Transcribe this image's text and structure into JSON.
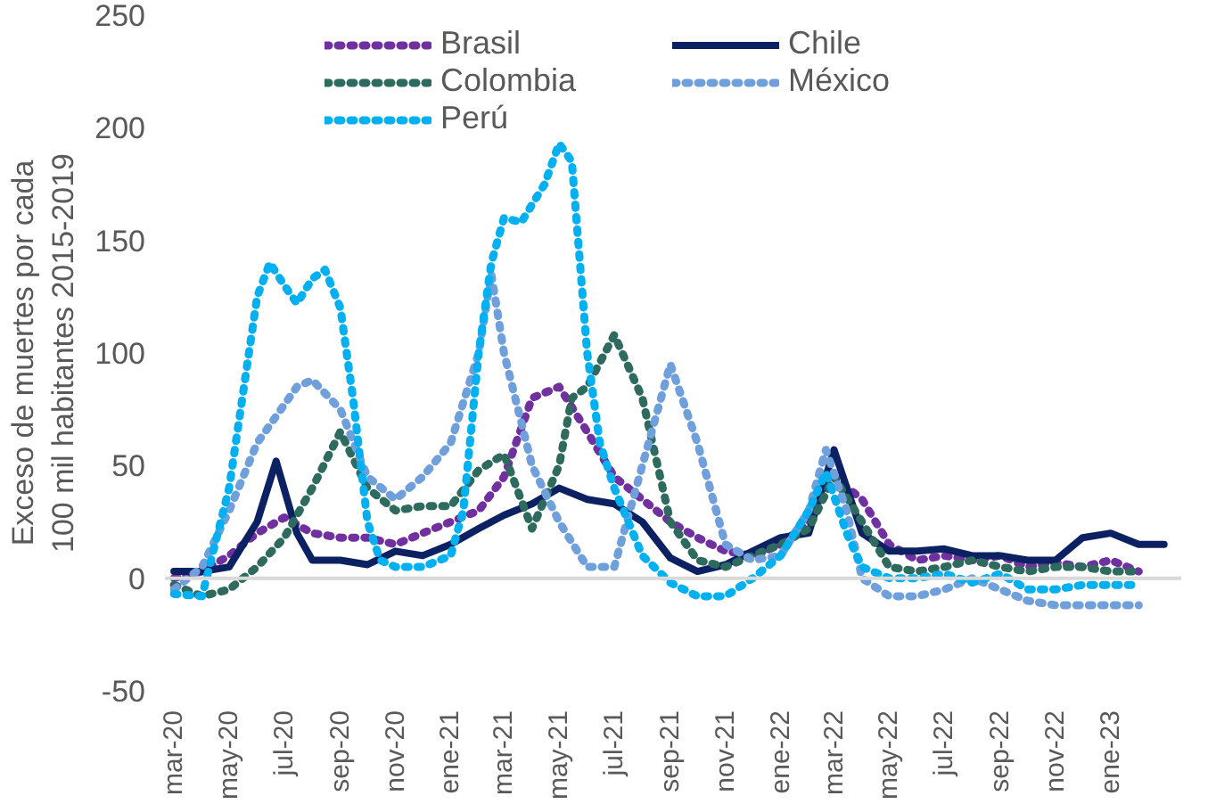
{
  "chart_data": {
    "type": "line",
    "ylabel": "Exceso de muertes por cada\n100 mil habitantes 2015-2019",
    "ylim": [
      -50,
      250
    ],
    "yticks": [
      -50,
      0,
      50,
      100,
      150,
      200,
      250
    ],
    "xlim": [
      "2020-02-20",
      "2023-03-20"
    ],
    "xticks": [
      {
        "value": "2020-03-01",
        "label": "mar-20"
      },
      {
        "value": "2020-05-01",
        "label": "may-20"
      },
      {
        "value": "2020-07-01",
        "label": "jul-20"
      },
      {
        "value": "2020-09-01",
        "label": "sep-20"
      },
      {
        "value": "2020-11-01",
        "label": "nov-20"
      },
      {
        "value": "2021-01-01",
        "label": "ene-21"
      },
      {
        "value": "2021-03-01",
        "label": "mar-21"
      },
      {
        "value": "2021-05-01",
        "label": "may-21"
      },
      {
        "value": "2021-07-01",
        "label": "jul-21"
      },
      {
        "value": "2021-09-01",
        "label": "sep-21"
      },
      {
        "value": "2021-11-01",
        "label": "nov-21"
      },
      {
        "value": "2022-01-01",
        "label": "ene-22"
      },
      {
        "value": "2022-03-01",
        "label": "mar-22"
      },
      {
        "value": "2022-05-01",
        "label": "may-22"
      },
      {
        "value": "2022-07-01",
        "label": "jul-22"
      },
      {
        "value": "2022-09-01",
        "label": "sep-22"
      },
      {
        "value": "2022-11-01",
        "label": "nov-22"
      },
      {
        "value": "2023-01-01",
        "label": "ene-23"
      }
    ],
    "legend": "top",
    "grid": false,
    "ref_lines": [
      {
        "axis": "y",
        "value": 0,
        "color": "#d9d9d9"
      }
    ],
    "series": [
      {
        "name": "Brasil",
        "color": "#7030a0",
        "line_style": "dotted",
        "x": [
          "2020-03-01",
          "2020-04-01",
          "2020-05-01",
          "2020-06-01",
          "2020-07-01",
          "2020-08-01",
          "2020-09-01",
          "2020-10-01",
          "2020-11-01",
          "2020-12-01",
          "2021-01-01",
          "2021-02-01",
          "2021-03-01",
          "2021-04-01",
          "2021-05-01",
          "2021-06-01",
          "2021-07-01",
          "2021-08-01",
          "2021-09-01",
          "2021-10-01",
          "2021-11-01",
          "2021-12-01",
          "2022-01-01",
          "2022-02-01",
          "2022-03-01",
          "2022-04-01",
          "2022-05-01",
          "2022-06-01",
          "2022-07-01",
          "2022-08-01",
          "2022-09-01",
          "2022-10-01",
          "2022-11-01",
          "2022-12-01",
          "2023-01-01",
          "2023-02-01"
        ],
        "values": [
          0,
          3,
          10,
          20,
          27,
          20,
          18,
          18,
          15,
          20,
          25,
          30,
          45,
          80,
          85,
          65,
          45,
          35,
          25,
          18,
          12,
          10,
          15,
          25,
          45,
          35,
          15,
          8,
          10,
          8,
          10,
          5,
          7,
          5,
          8,
          3
        ]
      },
      {
        "name": "Chile",
        "color": "#0c2161",
        "line_style": "solid",
        "x": [
          "2020-03-01",
          "2020-04-01",
          "2020-05-01",
          "2020-06-01",
          "2020-06-22",
          "2020-07-15",
          "2020-08-01",
          "2020-09-01",
          "2020-10-01",
          "2020-11-01",
          "2020-12-01",
          "2021-01-01",
          "2021-02-01",
          "2021-03-01",
          "2021-04-01",
          "2021-05-01",
          "2021-06-01",
          "2021-07-01",
          "2021-08-01",
          "2021-09-01",
          "2021-10-01",
          "2021-11-01",
          "2021-12-01",
          "2022-01-01",
          "2022-02-01",
          "2022-03-01",
          "2022-04-01",
          "2022-05-01",
          "2022-06-01",
          "2022-07-01",
          "2022-08-01",
          "2022-09-01",
          "2022-10-01",
          "2022-11-01",
          "2022-12-01",
          "2023-01-01",
          "2023-02-01",
          "2023-03-01"
        ],
        "values": [
          3,
          3,
          5,
          25,
          52,
          20,
          8,
          8,
          6,
          12,
          10,
          15,
          22,
          28,
          33,
          40,
          35,
          33,
          25,
          9,
          3,
          6,
          12,
          18,
          20,
          57,
          20,
          12,
          12,
          13,
          10,
          10,
          8,
          8,
          18,
          20,
          15,
          15
        ]
      },
      {
        "name": "Colombia",
        "color": "#2e6b5e",
        "line_style": "dotted",
        "x": [
          "2020-03-01",
          "2020-04-01",
          "2020-05-01",
          "2020-06-01",
          "2020-07-01",
          "2020-08-01",
          "2020-09-01",
          "2020-10-01",
          "2020-11-01",
          "2020-12-01",
          "2021-01-01",
          "2021-02-01",
          "2021-03-01",
          "2021-04-01",
          "2021-05-01",
          "2021-05-15",
          "2021-06-01",
          "2021-07-01",
          "2021-08-01",
          "2021-09-01",
          "2021-10-01",
          "2021-11-01",
          "2021-12-01",
          "2022-01-01",
          "2022-02-01",
          "2022-03-01",
          "2022-04-01",
          "2022-05-01",
          "2022-06-01",
          "2022-07-01",
          "2022-08-01",
          "2022-09-01",
          "2022-10-01",
          "2022-11-01",
          "2022-12-01",
          "2023-01-01",
          "2023-02-01"
        ],
        "values": [
          -3,
          -8,
          -5,
          5,
          18,
          40,
          65,
          40,
          30,
          32,
          32,
          48,
          55,
          22,
          50,
          80,
          85,
          108,
          80,
          25,
          8,
          5,
          10,
          15,
          22,
          45,
          25,
          5,
          3,
          5,
          8,
          5,
          3,
          5,
          5,
          3,
          3
        ]
      },
      {
        "name": "México",
        "color": "#6fa0dc",
        "line_style": "dotted",
        "x": [
          "2020-03-01",
          "2020-04-01",
          "2020-05-01",
          "2020-06-01",
          "2020-07-15",
          "2020-08-01",
          "2020-09-01",
          "2020-10-01",
          "2020-11-01",
          "2020-12-01",
          "2021-01-01",
          "2021-02-01",
          "2021-02-15",
          "2021-03-01",
          "2021-04-01",
          "2021-05-01",
          "2021-06-01",
          "2021-07-01",
          "2021-08-01",
          "2021-09-01",
          "2021-10-01",
          "2021-11-01",
          "2021-12-01",
          "2022-01-01",
          "2022-02-01",
          "2022-02-20",
          "2022-03-15",
          "2022-04-01",
          "2022-05-01",
          "2022-06-01",
          "2022-07-01",
          "2022-08-01",
          "2022-09-01",
          "2022-10-01",
          "2022-11-01",
          "2022-12-01",
          "2023-01-01",
          "2023-02-01"
        ],
        "values": [
          -5,
          5,
          30,
          60,
          85,
          88,
          75,
          45,
          35,
          45,
          60,
          100,
          135,
          100,
          50,
          25,
          5,
          5,
          50,
          95,
          60,
          15,
          8,
          10,
          30,
          57,
          30,
          0,
          -8,
          -8,
          -5,
          0,
          -5,
          -10,
          -12,
          -12,
          -12,
          -12
        ]
      },
      {
        "name": "Perú",
        "color": "#00b0f0",
        "line_style": "dotted",
        "x": [
          "2020-03-01",
          "2020-04-01",
          "2020-05-01",
          "2020-06-01",
          "2020-06-15",
          "2020-07-01",
          "2020-07-15",
          "2020-08-01",
          "2020-08-15",
          "2020-09-01",
          "2020-09-15",
          "2020-10-01",
          "2020-10-15",
          "2020-11-01",
          "2020-12-01",
          "2021-01-01",
          "2021-01-15",
          "2021-02-01",
          "2021-02-15",
          "2021-03-01",
          "2021-03-20",
          "2021-04-15",
          "2021-05-01",
          "2021-05-15",
          "2021-06-01",
          "2021-06-15",
          "2021-07-01",
          "2021-08-01",
          "2021-09-01",
          "2021-10-01",
          "2021-11-01",
          "2021-12-01",
          "2022-01-01",
          "2022-02-01",
          "2022-02-20",
          "2022-03-15",
          "2022-04-01",
          "2022-05-01",
          "2022-06-01",
          "2022-07-01",
          "2022-08-01",
          "2022-09-01",
          "2022-10-01",
          "2022-11-01",
          "2022-12-01",
          "2023-01-01",
          "2023-02-01"
        ],
        "values": [
          -7,
          -8,
          40,
          125,
          140,
          130,
          122,
          133,
          137,
          120,
          80,
          25,
          8,
          5,
          5,
          10,
          30,
          100,
          140,
          160,
          158,
          175,
          193,
          185,
          100,
          60,
          40,
          10,
          -2,
          -8,
          -8,
          0,
          10,
          30,
          47,
          20,
          5,
          0,
          0,
          2,
          -2,
          2,
          -5,
          -5,
          -3,
          -3,
          -3
        ]
      }
    ]
  }
}
